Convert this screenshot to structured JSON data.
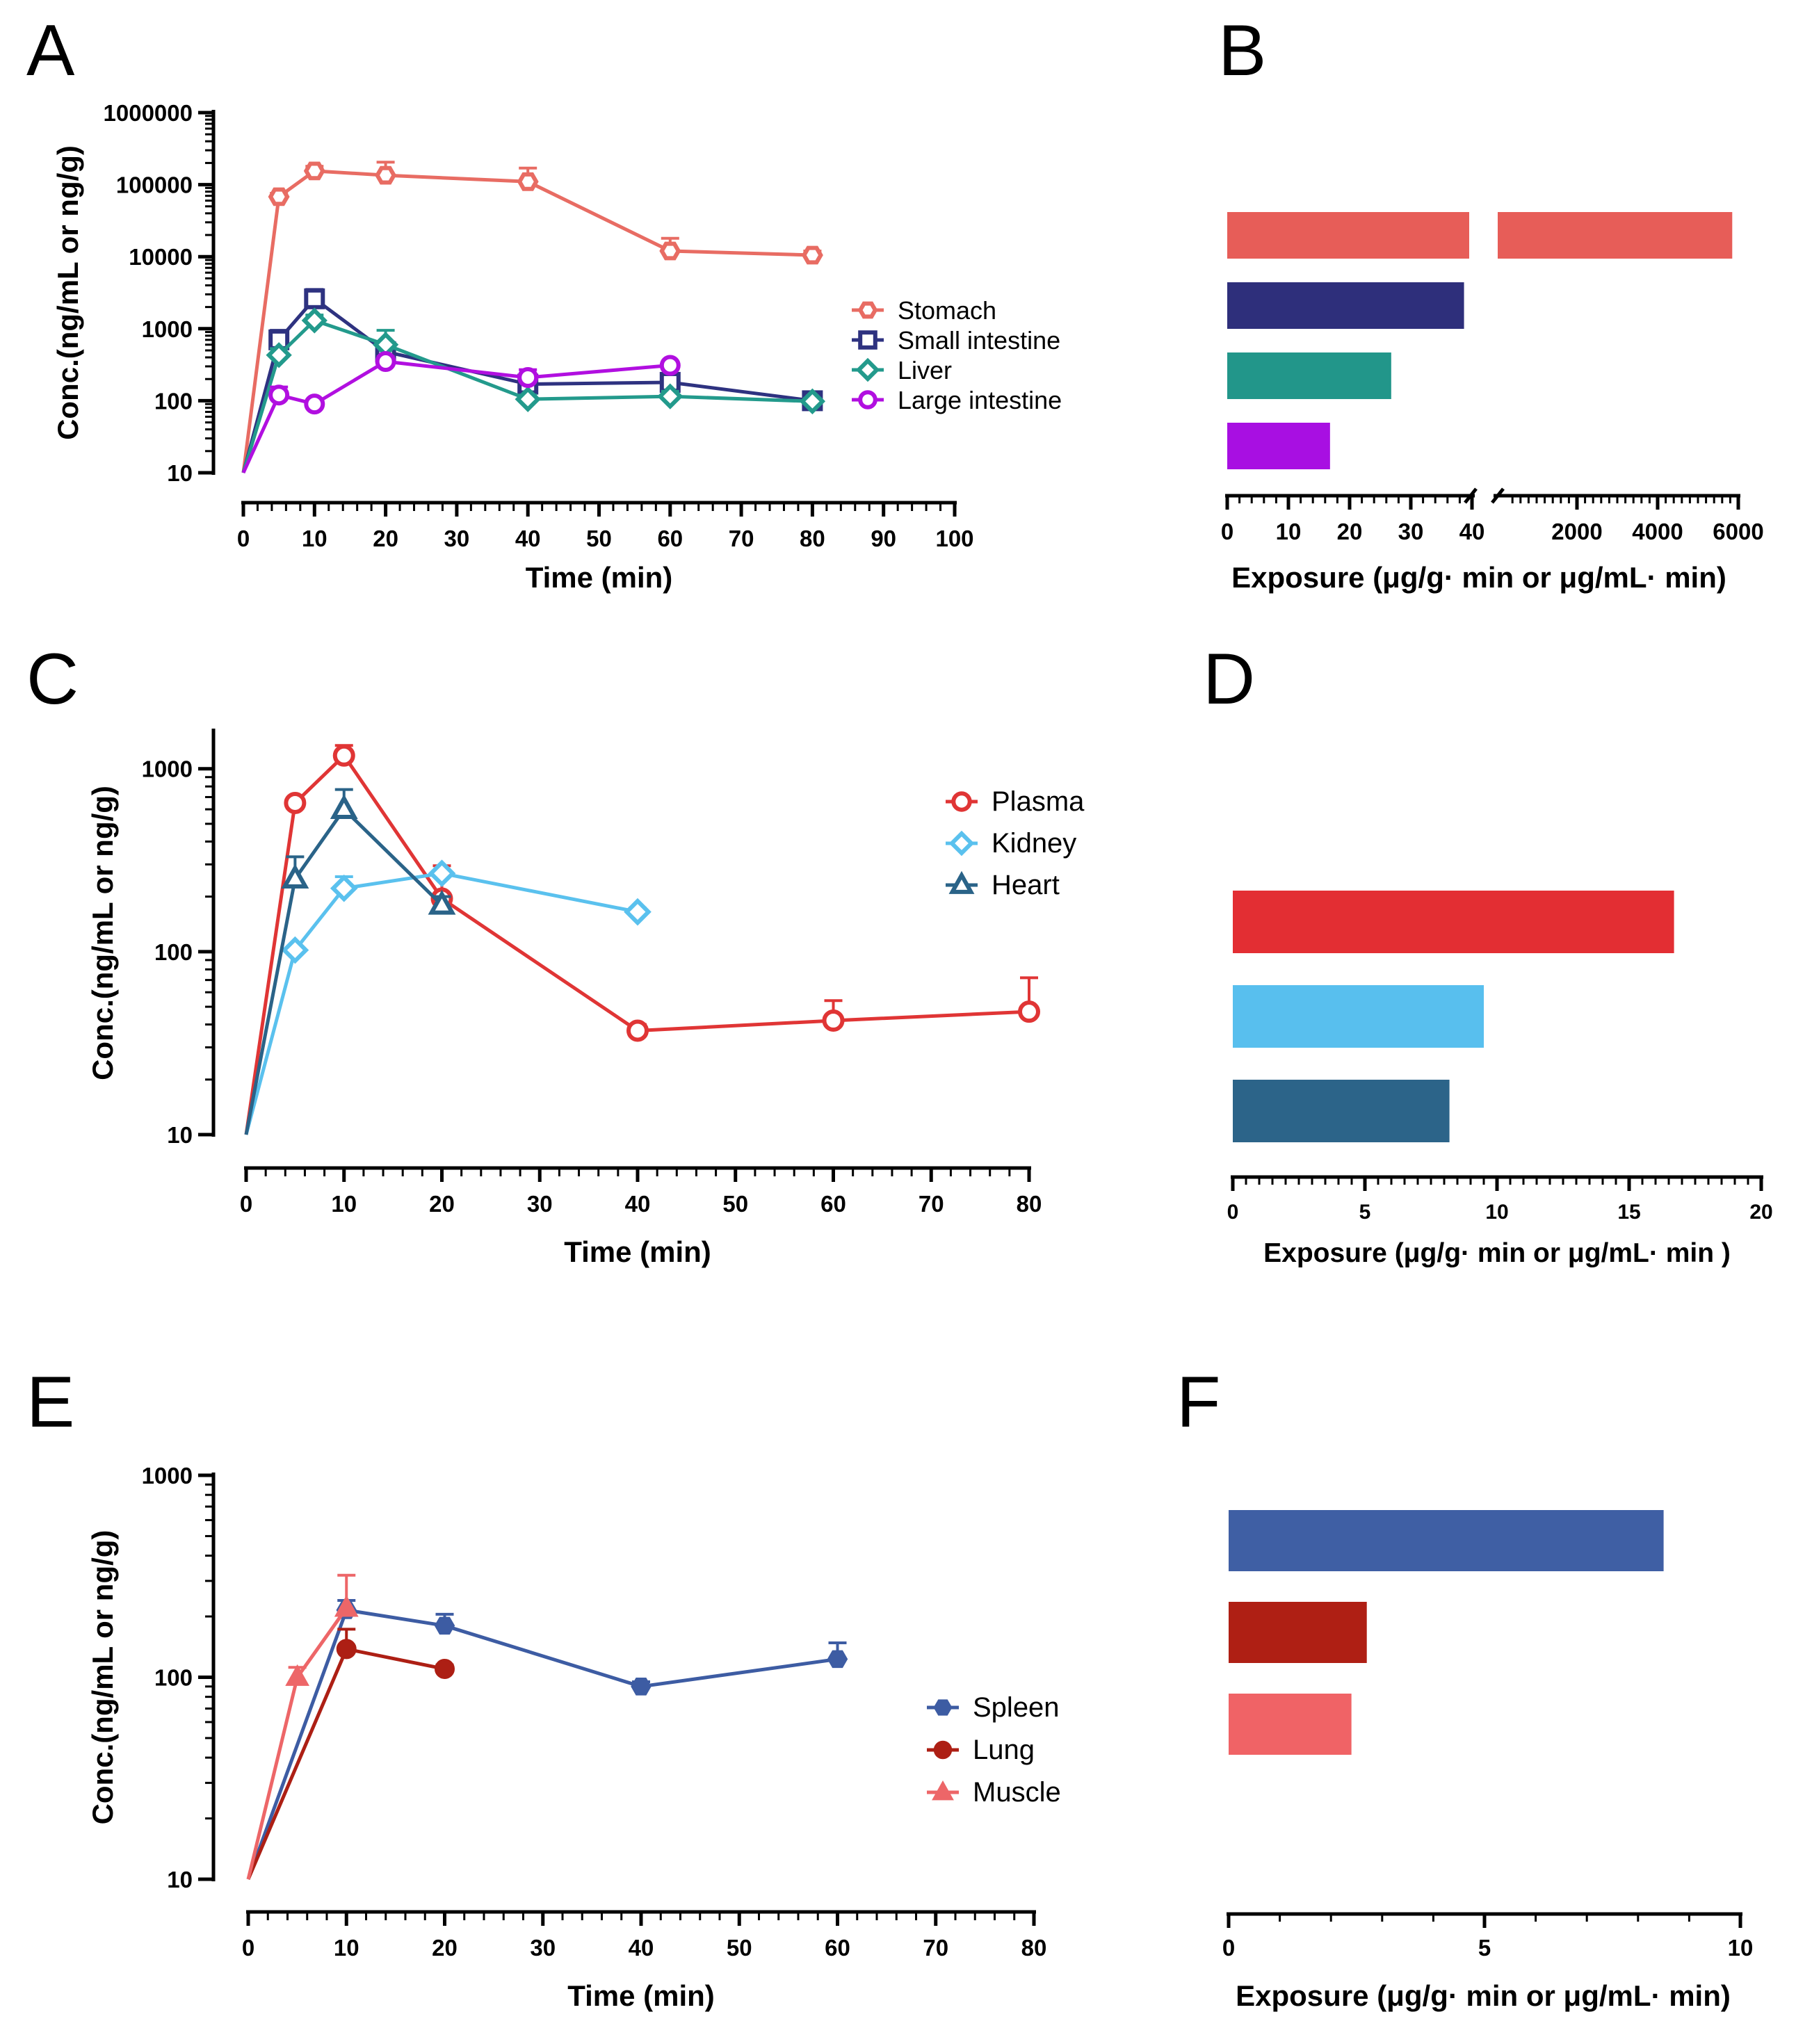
{
  "chart_data": [
    {
      "panel": "A",
      "type": "line",
      "xlabel": "Time (min)",
      "ylabel": "Conc.(ng/mL or ng/g)",
      "yscale": "log",
      "xlim": [
        0,
        100
      ],
      "ylim": [
        10,
        1000000
      ],
      "xticks": [
        0,
        10,
        20,
        30,
        40,
        50,
        60,
        70,
        80,
        90,
        100
      ],
      "yticks": [
        10,
        100,
        1000,
        10000,
        100000,
        1000000
      ],
      "legend_position": "right",
      "series": [
        {
          "name": "Stomach",
          "color": "#E86C63",
          "marker": "hexagon-open",
          "x": [
            0,
            5,
            10,
            20,
            40,
            60,
            80
          ],
          "y": [
            10,
            68000,
            155000,
            135000,
            110000,
            12000,
            10500
          ],
          "err": [
            0,
            8000,
            25000,
            70000,
            60000,
            6000,
            1500
          ]
        },
        {
          "name": "Small intestine",
          "color": "#2E3280",
          "marker": "square-open",
          "x": [
            0,
            5,
            10,
            20,
            40,
            60,
            80
          ],
          "y": [
            10,
            700,
            2600,
            480,
            170,
            180,
            100
          ],
          "err": [
            0,
            250,
            900,
            150,
            40,
            40,
            10
          ]
        },
        {
          "name": "Liver",
          "color": "#239A8C",
          "marker": "diamond-open",
          "x": [
            0,
            5,
            10,
            20,
            40,
            60,
            80
          ],
          "y": [
            10,
            430,
            1300,
            600,
            105,
            115,
            98
          ],
          "err": [
            0,
            100,
            250,
            350,
            15,
            20,
            10
          ]
        },
        {
          "name": "Large intestine",
          "color": "#B10FE0",
          "marker": "circle-open",
          "x": [
            0,
            5,
            10,
            20,
            40,
            60
          ],
          "y": [
            10,
            120,
            90,
            350,
            210,
            310
          ],
          "err": [
            0,
            35,
            10,
            60,
            60,
            30
          ]
        }
      ]
    },
    {
      "panel": "B",
      "type": "bar",
      "orientation": "horizontal",
      "xlabel": "Exposure (μg/g· min or μg/mL· min)",
      "axis_break": true,
      "segment1": {
        "range": [
          0,
          40
        ],
        "ticks": [
          0,
          10,
          20,
          30,
          40
        ]
      },
      "segment2": {
        "range": [
          0,
          6000
        ],
        "ticks": [
          2000,
          4000,
          6000
        ]
      },
      "categories": [
        "Stomach",
        "Small intestine",
        "Liver",
        "Large intestine"
      ],
      "values": [
        5850,
        38.7,
        26.8,
        16.8
      ],
      "colors": [
        "#E75D58",
        "#2E2F7B",
        "#22968A",
        "#A80FE2"
      ]
    },
    {
      "panel": "C",
      "type": "line",
      "xlabel": "Time (min)",
      "ylabel": "Conc.(ng/mL or ng/g)",
      "yscale": "log",
      "xlim": [
        0,
        80
      ],
      "ylim": [
        10,
        1600
      ],
      "xticks": [
        0,
        10,
        20,
        30,
        40,
        50,
        60,
        70,
        80
      ],
      "yticks": [
        10,
        100,
        1000
      ],
      "legend_position": "right",
      "series": [
        {
          "name": "Plasma",
          "color": "#E03535",
          "marker": "circle-open",
          "x": [
            0,
            5,
            10,
            20,
            40,
            60,
            80
          ],
          "y": [
            10,
            650,
            1180,
            195,
            37,
            42,
            47
          ],
          "err": [
            0,
            40,
            160,
            100,
            3,
            12,
            25
          ]
        },
        {
          "name": "Kidney",
          "color": "#5AC1EE",
          "marker": "diamond-open",
          "x": [
            0,
            5,
            10,
            20,
            40
          ],
          "y": [
            10,
            102,
            222,
            268,
            165
          ],
          "err": [
            0,
            4,
            35,
            12,
            8
          ]
        },
        {
          "name": "Heart",
          "color": "#2A6388",
          "marker": "triangle-open",
          "x": [
            0,
            5,
            10,
            20
          ],
          "y": [
            10,
            250,
            600,
            180
          ],
          "err": [
            0,
            80,
            170,
            20
          ]
        }
      ]
    },
    {
      "panel": "D",
      "type": "bar",
      "orientation": "horizontal",
      "xlabel": "Exposure (μg/g· min or μg/mL· min )",
      "xlim": [
        0,
        20
      ],
      "xticks": [
        0,
        5,
        10,
        15,
        20
      ],
      "categories": [
        "Plasma",
        "Kidney",
        "Heart"
      ],
      "values": [
        16.7,
        9.5,
        8.2
      ],
      "colors": [
        "#E32E33",
        "#58BFEE",
        "#2C6489"
      ]
    },
    {
      "panel": "E",
      "type": "line",
      "xlabel": "Time (min)",
      "ylabel": "Conc.(ng/mL or ng/g)",
      "yscale": "log",
      "xlim": [
        0,
        80
      ],
      "ylim": [
        10,
        1000
      ],
      "xticks": [
        0,
        10,
        20,
        30,
        40,
        50,
        60,
        70,
        80
      ],
      "yticks": [
        10,
        100,
        1000
      ],
      "legend_position": "right",
      "series": [
        {
          "name": "Spleen",
          "color": "#3D5CA3",
          "marker": "hexagon-filled",
          "x": [
            0,
            10,
            20,
            40,
            60
          ],
          "y": [
            10,
            215,
            180,
            90,
            123
          ],
          "err": [
            0,
            25,
            25,
            5,
            25
          ]
        },
        {
          "name": "Lung",
          "color": "#AD1F14",
          "marker": "circle-filled",
          "x": [
            0,
            10,
            20
          ],
          "y": [
            10,
            138,
            110
          ],
          "err": [
            0,
            35,
            5
          ]
        },
        {
          "name": "Muscle",
          "color": "#ED6668",
          "marker": "triangle-filled",
          "x": [
            0,
            5,
            10
          ],
          "y": [
            10,
            100,
            220
          ],
          "err": [
            0,
            12,
            100
          ]
        }
      ]
    },
    {
      "panel": "F",
      "type": "bar",
      "orientation": "horizontal",
      "xlabel": "Exposure (μg/g· min or μg/mL· min)",
      "xlim": [
        0,
        10
      ],
      "xticks": [
        0,
        5,
        10
      ],
      "categories": [
        "Spleen",
        "Lung",
        "Muscle"
      ],
      "values": [
        8.5,
        2.7,
        2.4
      ],
      "colors": [
        "#3F5FA4",
        "#AF1F14",
        "#F06366"
      ]
    }
  ]
}
